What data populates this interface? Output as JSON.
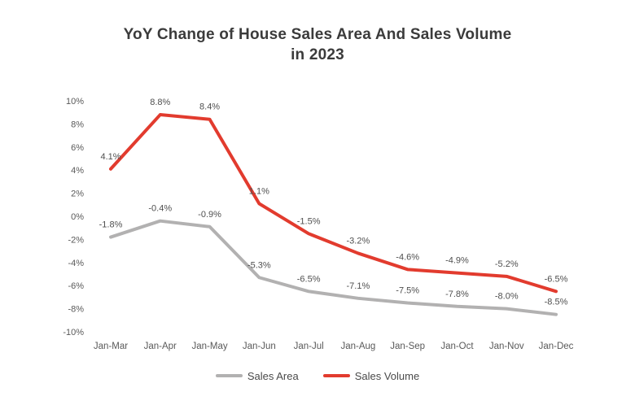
{
  "title": {
    "line1": "YoY Change of House Sales Area And Sales Volume",
    "line2": "in 2023"
  },
  "chart_data": {
    "type": "line",
    "title": "YoY Change of House Sales Area And Sales Volume in 2023",
    "categories": [
      "Jan-Mar",
      "Jan-Apr",
      "Jan-May",
      "Jan-Jun",
      "Jan-Jul",
      "Jan-Aug",
      "Jan-Sep",
      "Jan-Oct",
      "Jan-Nov",
      "Jan-Dec"
    ],
    "series": [
      {
        "name": "Sales Area",
        "color": "#b2b1b1",
        "values": [
          -1.8,
          -0.4,
          -0.9,
          -5.3,
          -6.5,
          -7.1,
          -7.5,
          -7.8,
          -8.0,
          -8.5
        ],
        "labels": [
          "-1.8%",
          "-0.4%",
          "-0.9%",
          "-5.3%",
          "-6.5%",
          "-7.1%",
          "-7.5%",
          "-7.8%",
          "-8.0%",
          "-8.5%"
        ]
      },
      {
        "name": "Sales Volume",
        "color": "#e23b2e",
        "values": [
          4.1,
          8.8,
          8.4,
          1.1,
          -1.5,
          -3.2,
          -4.6,
          -4.9,
          -5.2,
          -6.5
        ],
        "labels": [
          "4.1%",
          "8.8%",
          "8.4%",
          "1.1%",
          "-1.5%",
          "-3.2%",
          "-4.6%",
          "-4.9%",
          "-5.2%",
          "-6.5%"
        ]
      }
    ],
    "yticks": {
      "values": [
        10,
        8,
        6,
        4,
        2,
        0,
        -2,
        -4,
        -6,
        -8,
        -10
      ],
      "labels": [
        "10%",
        "8%",
        "6%",
        "4%",
        "2%",
        "0%",
        "-2%",
        "-4%",
        "-6%",
        "-8%",
        "-10%"
      ]
    },
    "ylim": [
      -10,
      10
    ],
    "grid": false,
    "legend_position": "bottom",
    "axis_text_color": "#595959",
    "data_label_color": "#4f4f4f"
  },
  "legend": {
    "items": [
      {
        "label": "Sales Area",
        "color": "#b2b1b1"
      },
      {
        "label": "Sales Volume",
        "color": "#e23b2e"
      }
    ]
  }
}
